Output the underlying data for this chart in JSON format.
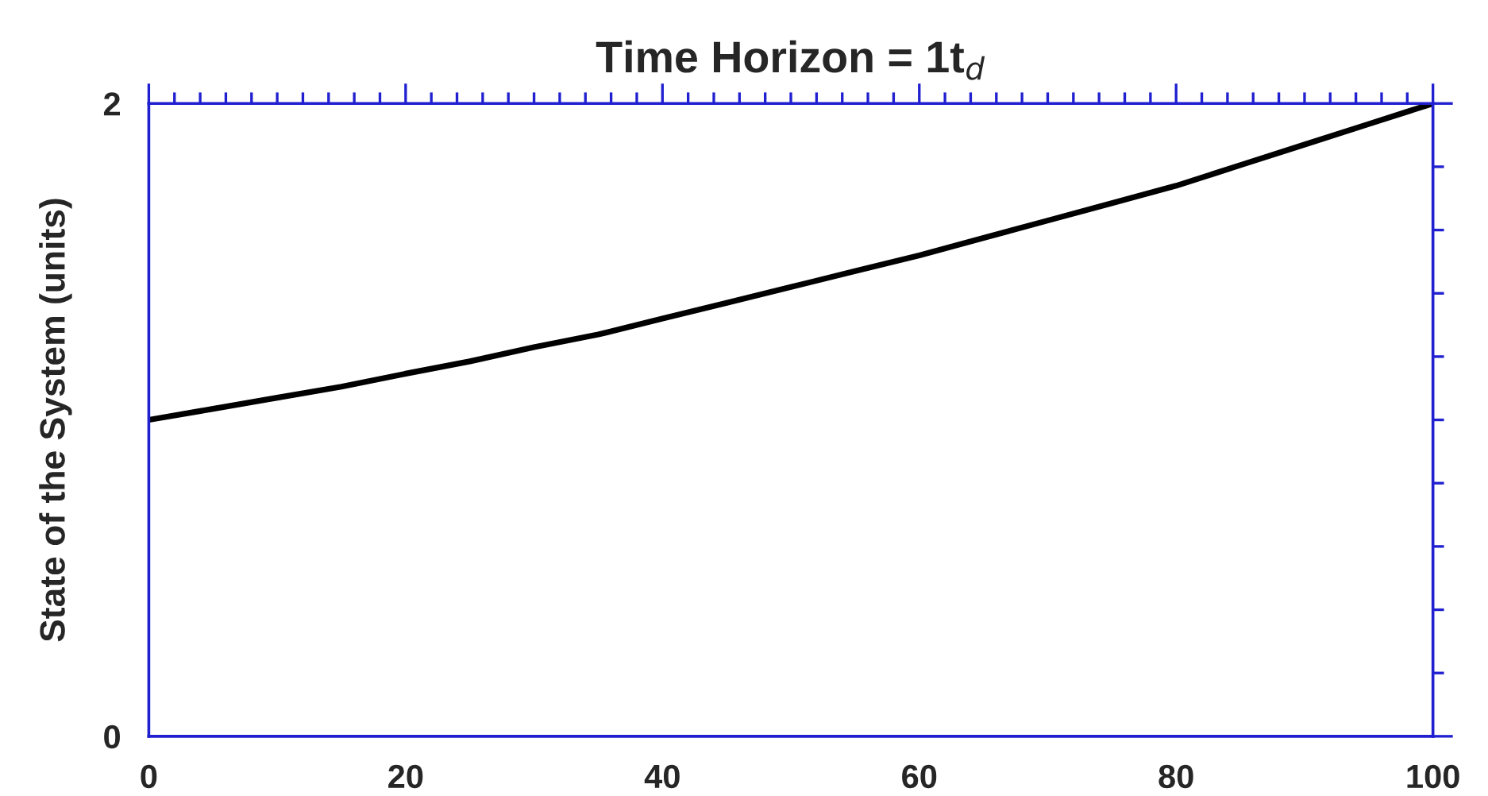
{
  "chart_data": {
    "type": "line",
    "title": "Time Horizon = 1t$_{d}$",
    "ylabel": "State of the System (units)",
    "x": [
      0,
      5,
      10,
      15,
      20,
      25,
      30,
      35,
      40,
      45,
      50,
      55,
      60,
      65,
      70,
      75,
      80,
      85,
      90,
      95,
      100
    ],
    "series": [
      {
        "color": "#000000",
        "values": [
          1.0,
          1.035,
          1.07,
          1.105,
          1.146,
          1.185,
          1.23,
          1.27,
          1.32,
          1.37,
          1.42,
          1.47,
          1.52,
          1.575,
          1.63,
          1.685,
          1.74,
          1.805,
          1.87,
          1.935,
          2.0
        ]
      }
    ],
    "xlim": [
      0,
      100
    ],
    "ylim": [
      0,
      2
    ],
    "xticks": [
      0,
      {
        "value": 2,
        "label": null
      },
      {
        "value": 4,
        "label": null
      },
      {
        "value": 6,
        "label": null
      },
      {
        "value": 8,
        "label": null
      },
      {
        "value": 10,
        "label": null
      },
      {
        "value": 12,
        "label": null
      },
      {
        "value": 14,
        "label": null
      },
      {
        "value": 16,
        "label": null
      },
      {
        "value": 18,
        "label": null
      },
      20,
      {
        "value": 22,
        "label": null
      },
      {
        "value": 24,
        "label": null
      },
      {
        "value": 26,
        "label": null
      },
      {
        "value": 28,
        "label": null
      },
      {
        "value": 30,
        "label": null
      },
      {
        "value": 32,
        "label": null
      },
      {
        "value": 34,
        "label": null
      },
      {
        "value": 36,
        "label": null
      },
      {
        "value": 38,
        "label": null
      },
      40,
      {
        "value": 42,
        "label": null
      },
      {
        "value": 44,
        "label": null
      },
      {
        "value": 46,
        "label": null
      },
      {
        "value": 48,
        "label": null
      },
      {
        "value": 50,
        "label": null
      },
      {
        "value": 52,
        "label": null
      },
      {
        "value": 54,
        "label": null
      },
      {
        "value": 56,
        "label": null
      },
      {
        "value": 58,
        "label": null
      },
      60,
      {
        "value": 62,
        "label": null
      },
      {
        "value": 64,
        "label": null
      },
      {
        "value": 66,
        "label": null
      },
      {
        "value": 68,
        "label": null
      },
      {
        "value": 70,
        "label": null
      },
      {
        "value": 72,
        "label": null
      },
      {
        "value": 74,
        "label": null
      },
      {
        "value": 76,
        "label": null
      },
      {
        "value": 78,
        "label": null
      },
      80,
      {
        "value": 82,
        "label": null
      },
      {
        "value": 84,
        "label": null
      },
      {
        "value": 86,
        "label": null
      },
      {
        "value": 88,
        "label": null
      },
      {
        "value": 90,
        "label": null
      },
      {
        "value": 92,
        "label": null
      },
      {
        "value": 94,
        "label": null
      },
      {
        "value": 96,
        "label": null
      },
      {
        "value": 98,
        "label": null
      },
      100
    ],
    "yticks": [
      0,
      {
        "value": 0.2,
        "label": null
      },
      {
        "value": 0.4,
        "label": null
      },
      {
        "value": 0.6,
        "label": null
      },
      {
        "value": 0.8,
        "label": null
      },
      {
        "value": 1.0,
        "label": null
      },
      {
        "value": 1.2,
        "label": null
      },
      {
        "value": 1.4,
        "label": null
      },
      {
        "value": 1.6,
        "label": null
      },
      {
        "value": 1.8,
        "label": null
      },
      2
    ],
    "grid": false,
    "legend": false,
    "marker": "none",
    "line_style": "solid"
  }
}
